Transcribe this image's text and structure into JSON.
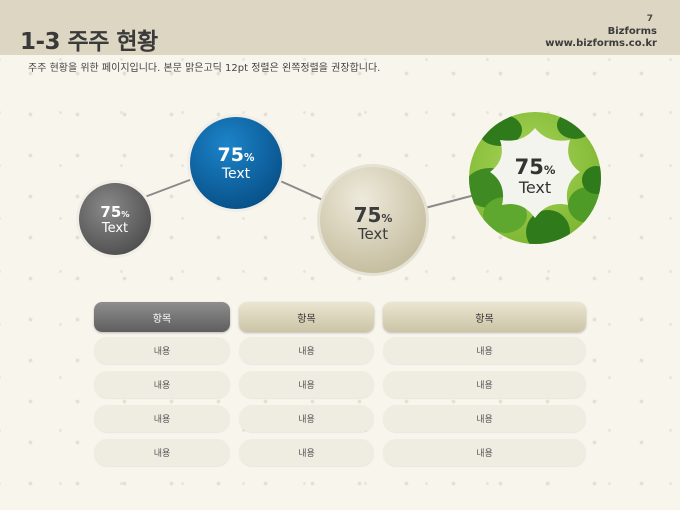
{
  "header": {
    "title": "1-3 주주 현황",
    "page_number": "7",
    "brand_name": "Bizforms",
    "brand_url": "www.bizforms.co.kr"
  },
  "subtitle": "주주 현황을 위한 페이지입니다. 본문 맑은고딕 12pt 정렬은 왼쪽정렬을 권장합니다.",
  "circles": [
    {
      "value": "75",
      "unit": "%",
      "label": "Text"
    },
    {
      "value": "75",
      "unit": "%",
      "label": "Text"
    },
    {
      "value": "75",
      "unit": "%",
      "label": "Text"
    },
    {
      "value": "75",
      "unit": "%",
      "label": "Text"
    }
  ],
  "table": {
    "columns": [
      {
        "header": "항목",
        "rows": [
          "내용",
          "내용",
          "내용",
          "내용"
        ]
      },
      {
        "header": "항목",
        "rows": [
          "내용",
          "내용",
          "내용",
          "내용"
        ]
      },
      {
        "header": "항목",
        "rows": [
          "내용",
          "내용",
          "내용",
          "내용"
        ]
      }
    ]
  },
  "colors": {
    "header_band": "#dcd6c2",
    "gray_circle": "#6b6b6b",
    "blue_circle": "#0b63a5",
    "beige_circle": "#d6d0b6",
    "green_circle": "#8cc63f"
  }
}
